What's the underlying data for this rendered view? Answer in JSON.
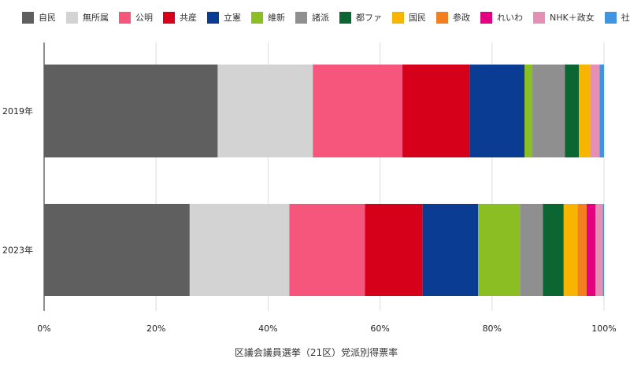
{
  "chart_data": {
    "type": "bar",
    "orientation": "horizontal",
    "stacked": true,
    "categories": [
      "2019年",
      "2023年"
    ],
    "series": [
      {
        "name": "自民",
        "color": "#5f5f5f",
        "values": [
          31.0,
          26.0
        ]
      },
      {
        "name": "無所属",
        "color": "#d3d3d3",
        "values": [
          17.0,
          17.8
        ]
      },
      {
        "name": "公明",
        "color": "#f7567c",
        "values": [
          16.0,
          13.5
        ]
      },
      {
        "name": "共産",
        "color": "#d7001a",
        "values": [
          12.0,
          10.3
        ]
      },
      {
        "name": "立憲",
        "color": "#0a3c94",
        "values": [
          9.8,
          9.9
        ]
      },
      {
        "name": "維新",
        "color": "#8bbe23",
        "values": [
          1.3,
          7.5
        ]
      },
      {
        "name": "諸派",
        "color": "#8f8f8f",
        "values": [
          5.9,
          4.1
        ]
      },
      {
        "name": "都ファ",
        "color": "#0b6631",
        "values": [
          2.5,
          3.7
        ]
      },
      {
        "name": "国民",
        "color": "#f8b500",
        "values": [
          2.0,
          2.5
        ]
      },
      {
        "name": "参政",
        "color": "#f47f20",
        "values": [
          0.0,
          1.6
        ]
      },
      {
        "name": "れいわ",
        "color": "#e5007f",
        "values": [
          0.0,
          1.6
        ]
      },
      {
        "name": "NHK＋政女",
        "color": "#e48fb4",
        "values": [
          1.7,
          1.3
        ]
      },
      {
        "name": "社民",
        "color": "#4194e1",
        "values": [
          0.8,
          0.2
        ]
      }
    ],
    "xlim": [
      0,
      100
    ],
    "x_ticks": [
      "0%",
      "20%",
      "40%",
      "60%",
      "80%",
      "100%"
    ],
    "xlabel": "区議会議員選挙（21区）党派別得票率",
    "ylabel": "",
    "grid": true,
    "legend_position": "top"
  }
}
